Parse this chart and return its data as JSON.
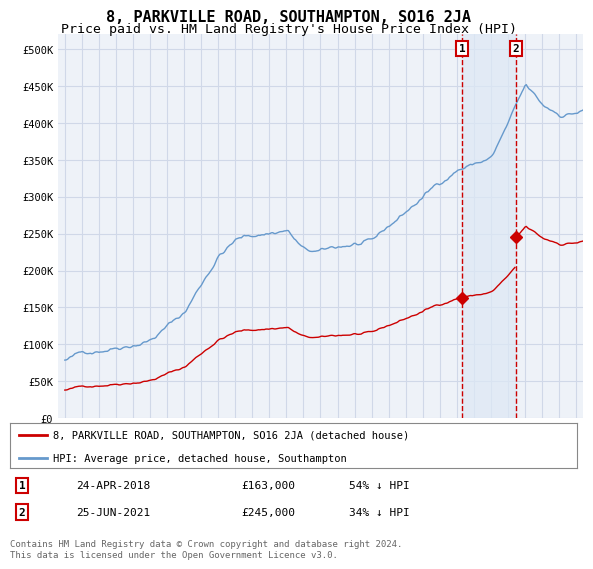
{
  "title": "8, PARKVILLE ROAD, SOUTHAMPTON, SO16 2JA",
  "subtitle": "Price paid vs. HM Land Registry's House Price Index (HPI)",
  "title_fontsize": 11,
  "subtitle_fontsize": 9.5,
  "ylabel_ticks": [
    "£0",
    "£50K",
    "£100K",
    "£150K",
    "£200K",
    "£250K",
    "£300K",
    "£350K",
    "£400K",
    "£450K",
    "£500K"
  ],
  "ytick_values": [
    0,
    50000,
    100000,
    150000,
    200000,
    250000,
    300000,
    350000,
    400000,
    450000,
    500000
  ],
  "ylim": [
    0,
    520000
  ],
  "background_color": "#ffffff",
  "plot_bg_color": "#eef2f8",
  "grid_color": "#d0d8e8",
  "hpi_color": "#6699cc",
  "price_color": "#cc0000",
  "marker1_date": "24-APR-2018",
  "marker1_price": 163000,
  "marker1_pct": "54% ↓ HPI",
  "marker1_x": 2018.31,
  "marker2_date": "25-JUN-2021",
  "marker2_price": 245000,
  "marker2_pct": "34% ↓ HPI",
  "marker2_x": 2021.48,
  "dashed_line_color": "#cc0000",
  "shade_color": "#dde8f5",
  "legend_label_red": "8, PARKVILLE ROAD, SOUTHAMPTON, SO16 2JA (detached house)",
  "legend_label_blue": "HPI: Average price, detached house, Southampton",
  "footnote": "Contains HM Land Registry data © Crown copyright and database right 2024.\nThis data is licensed under the Open Government Licence v3.0."
}
